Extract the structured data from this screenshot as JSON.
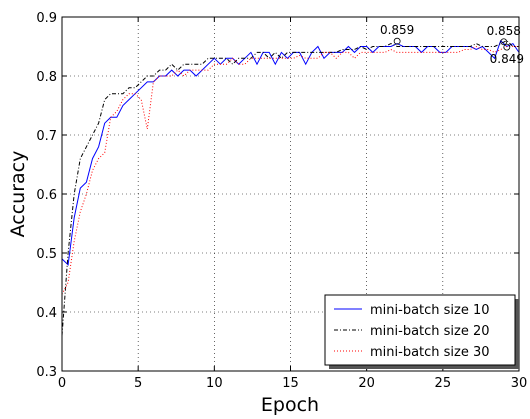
{
  "chart_data": {
    "type": "line",
    "title": "",
    "xlabel": "Epoch",
    "ylabel": "Accuracy",
    "xlim": [
      0,
      30
    ],
    "ylim": [
      0.3,
      0.9
    ],
    "xticks": [
      "0",
      "5",
      "10",
      "15",
      "20",
      "25",
      "30"
    ],
    "yticks": [
      "0.3",
      "0.4",
      "0.5",
      "0.6",
      "0.7",
      "0.8",
      "0.9"
    ],
    "grid": true,
    "legend_position": "bottom-right",
    "series": [
      {
        "name": "mini-batch size 10",
        "color": "#0000ff",
        "style": "solid",
        "x": [
          0,
          0.4,
          0.8,
          1.2,
          1.6,
          2,
          2.4,
          2.8,
          3.2,
          3.6,
          4,
          4.4,
          4.8,
          5.2,
          5.6,
          6,
          6.4,
          6.8,
          7.2,
          7.6,
          8,
          8.4,
          8.8,
          9.2,
          9.6,
          10,
          10.4,
          10.8,
          11.2,
          11.6,
          12,
          12.4,
          12.8,
          13.2,
          13.6,
          14,
          14.4,
          14.8,
          15.2,
          15.6,
          16,
          16.4,
          16.8,
          17.2,
          17.6,
          18,
          18.4,
          18.8,
          19.2,
          19.6,
          20,
          20.4,
          20.8,
          21.2,
          21.6,
          22,
          22.4,
          22.8,
          23.2,
          23.6,
          24,
          24.4,
          24.8,
          25.2,
          25.6,
          26,
          26.4,
          26.8,
          27.2,
          27.6,
          28,
          28.4,
          28.8,
          29.2,
          29.6,
          30
        ],
        "values": [
          0.49,
          0.48,
          0.56,
          0.61,
          0.62,
          0.66,
          0.68,
          0.72,
          0.73,
          0.73,
          0.75,
          0.76,
          0.77,
          0.78,
          0.79,
          0.79,
          0.8,
          0.8,
          0.81,
          0.8,
          0.81,
          0.81,
          0.8,
          0.81,
          0.82,
          0.83,
          0.82,
          0.83,
          0.83,
          0.82,
          0.83,
          0.84,
          0.82,
          0.84,
          0.84,
          0.82,
          0.84,
          0.83,
          0.84,
          0.84,
          0.82,
          0.84,
          0.85,
          0.83,
          0.84,
          0.84,
          0.84,
          0.85,
          0.84,
          0.85,
          0.85,
          0.84,
          0.85,
          0.85,
          0.85,
          0.855,
          0.85,
          0.85,
          0.85,
          0.84,
          0.85,
          0.85,
          0.84,
          0.84,
          0.85,
          0.85,
          0.85,
          0.85,
          0.845,
          0.85,
          0.84,
          0.83,
          0.86,
          0.85,
          0.855,
          0.84
        ]
      },
      {
        "name": "mini-batch size 20",
        "color": "#000000",
        "style": "dashdot",
        "x": [
          0,
          0.4,
          0.8,
          1.2,
          1.6,
          2,
          2.4,
          2.8,
          3.2,
          3.6,
          4,
          4.4,
          4.8,
          5.2,
          5.6,
          6,
          6.4,
          6.8,
          7.2,
          7.6,
          8,
          8.4,
          8.8,
          9.2,
          9.6,
          10,
          10.4,
          10.8,
          11.2,
          11.6,
          12,
          12.4,
          12.8,
          13.2,
          13.6,
          14,
          14.4,
          14.8,
          15.2,
          15.6,
          16,
          16.4,
          16.8,
          17.2,
          17.6,
          18,
          18.4,
          18.8,
          19.2,
          19.6,
          20,
          20.4,
          20.8,
          21.2,
          21.6,
          22,
          22.4,
          22.8,
          23.2,
          23.6,
          24,
          24.4,
          24.8,
          25.2,
          25.6,
          26,
          26.4,
          26.8,
          27.2,
          27.6,
          28,
          28.4,
          28.8,
          29.2,
          29.6,
          30
        ],
        "values": [
          0.36,
          0.5,
          0.6,
          0.66,
          0.68,
          0.7,
          0.72,
          0.76,
          0.77,
          0.77,
          0.77,
          0.78,
          0.78,
          0.79,
          0.8,
          0.8,
          0.81,
          0.81,
          0.82,
          0.81,
          0.82,
          0.82,
          0.82,
          0.82,
          0.83,
          0.83,
          0.83,
          0.83,
          0.82,
          0.83,
          0.83,
          0.83,
          0.84,
          0.84,
          0.83,
          0.84,
          0.83,
          0.84,
          0.84,
          0.84,
          0.84,
          0.84,
          0.84,
          0.84,
          0.84,
          0.84,
          0.845,
          0.845,
          0.845,
          0.85,
          0.845,
          0.85,
          0.85,
          0.85,
          0.855,
          0.85,
          0.85,
          0.85,
          0.85,
          0.85,
          0.85,
          0.85,
          0.85,
          0.85,
          0.85,
          0.85,
          0.85,
          0.85,
          0.855,
          0.85,
          0.85,
          0.85,
          0.855,
          0.86,
          0.85,
          0.85
        ]
      },
      {
        "name": "mini-batch size 30",
        "color": "#ff0000",
        "style": "dotted",
        "x": [
          0,
          0.4,
          0.8,
          1.2,
          1.6,
          2,
          2.4,
          2.8,
          3.2,
          3.6,
          4,
          4.4,
          4.8,
          5.2,
          5.6,
          6,
          6.4,
          6.8,
          7.2,
          7.6,
          8,
          8.4,
          8.8,
          9.2,
          9.6,
          10,
          10.4,
          10.8,
          11.2,
          11.6,
          12,
          12.4,
          12.8,
          13.2,
          13.6,
          14,
          14.4,
          14.8,
          15.2,
          15.6,
          16,
          16.4,
          16.8,
          17.2,
          17.6,
          18,
          18.4,
          18.8,
          19.2,
          19.6,
          20,
          20.4,
          20.8,
          21.2,
          21.6,
          22,
          22.4,
          22.8,
          23.2,
          23.6,
          24,
          24.4,
          24.8,
          25.2,
          25.6,
          26,
          26.4,
          26.8,
          27.2,
          27.6,
          28,
          28.4,
          28.8,
          29.2,
          29.6,
          30
        ],
        "values": [
          0.43,
          0.45,
          0.52,
          0.57,
          0.6,
          0.64,
          0.66,
          0.67,
          0.73,
          0.74,
          0.76,
          0.77,
          0.77,
          0.76,
          0.71,
          0.79,
          0.8,
          0.8,
          0.8,
          0.81,
          0.8,
          0.81,
          0.81,
          0.81,
          0.81,
          0.82,
          0.82,
          0.82,
          0.83,
          0.82,
          0.82,
          0.83,
          0.83,
          0.83,
          0.83,
          0.83,
          0.83,
          0.83,
          0.83,
          0.835,
          0.83,
          0.83,
          0.83,
          0.84,
          0.84,
          0.83,
          0.84,
          0.84,
          0.83,
          0.84,
          0.84,
          0.84,
          0.84,
          0.84,
          0.845,
          0.84,
          0.84,
          0.84,
          0.84,
          0.84,
          0.84,
          0.84,
          0.84,
          0.84,
          0.84,
          0.84,
          0.845,
          0.845,
          0.85,
          0.845,
          0.845,
          0.84,
          0.845,
          0.85,
          0.85,
          0.85
        ]
      }
    ],
    "annotations": [
      {
        "text": "0.859",
        "x": 22,
        "y": 0.859
      },
      {
        "text": "0.858",
        "x": 29,
        "y": 0.858
      },
      {
        "text": "0.849",
        "x": 29.2,
        "y": 0.849
      }
    ]
  }
}
